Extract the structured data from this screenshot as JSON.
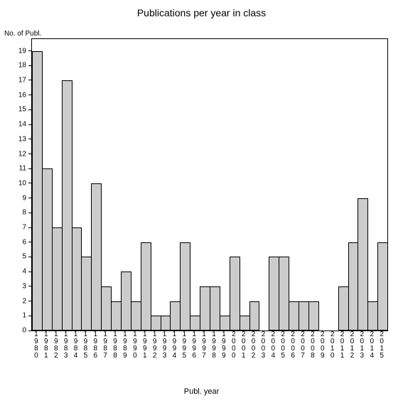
{
  "chart": {
    "type": "bar",
    "title": "Publications per year in class",
    "title_fontsize": 14,
    "y_axis_label": "No. of Publ.",
    "x_axis_label": "Publ. year",
    "label_fontsize": 10,
    "ylim": [
      0,
      19.8
    ],
    "ytick_step": 1,
    "ytick_min": 0,
    "ytick_max": 19,
    "background_color": "#ffffff",
    "bar_fill_color": "#cccccc",
    "bar_border_color": "#000000",
    "axis_color": "#000000",
    "text_color": "#000000",
    "categories": [
      "1980",
      "1981",
      "1982",
      "1983",
      "1984",
      "1985",
      "1986",
      "1987",
      "1988",
      "1989",
      "1990",
      "1991",
      "1992",
      "1993",
      "1994",
      "1995",
      "1996",
      "1997",
      "1998",
      "1999",
      "2000",
      "2001",
      "2002",
      "2003",
      "2004",
      "2005",
      "2006",
      "2007",
      "2008",
      "2009",
      "2010",
      "2011",
      "2012",
      "2013",
      "2014",
      "2015"
    ],
    "values": [
      19,
      11,
      7,
      17,
      7,
      5,
      10,
      3,
      2,
      4,
      2,
      6,
      1,
      1,
      2,
      6,
      1,
      3,
      3,
      1,
      5,
      1,
      2,
      0,
      5,
      5,
      2,
      2,
      2,
      0,
      0,
      3,
      6,
      9,
      2,
      6
    ]
  }
}
